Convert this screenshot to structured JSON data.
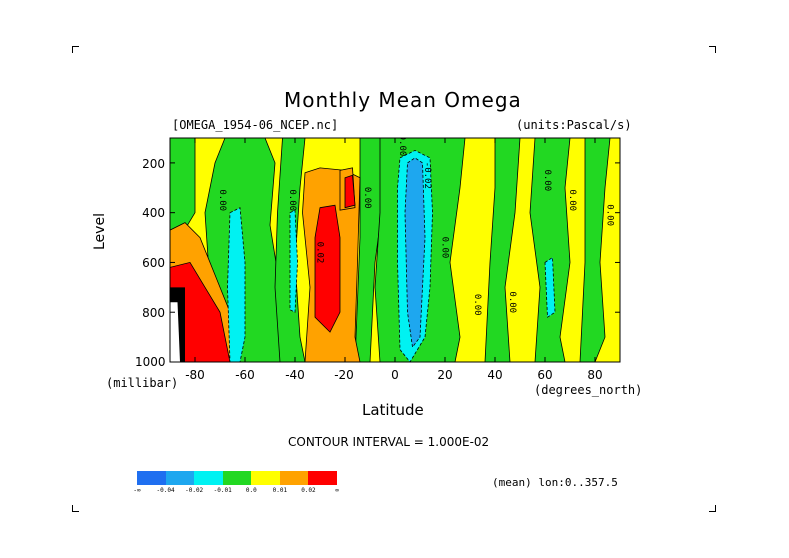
{
  "chart_data": {
    "type": "heatmap",
    "title": "Monthly Mean Omega",
    "subtitle_left": "[OMEGA_1954-06_NCEP.nc]",
    "subtitle_right": "(units:Pascal/s)",
    "xlabel": "Latitude",
    "xunits": "(degrees_north)",
    "ylabel": "Level",
    "yunits": "(millibar)",
    "xlim": [
      -90,
      90
    ],
    "ylim": [
      1000,
      100
    ],
    "x_ticks": [
      "-80",
      "-60",
      "-40",
      "-20",
      "0",
      "20",
      "40",
      "60",
      "80"
    ],
    "y_ticks": [
      "200",
      "400",
      "600",
      "800",
      "1000"
    ],
    "contour_interval": "CONTOUR INTERVAL = 1.000E-02",
    "colorbar": {
      "colors": [
        "#1f6ff0",
        "#1ea7ef",
        "#00f2f2",
        "#22d822",
        "#ffff00",
        "#ffa200",
        "#ff0000"
      ],
      "labels": [
        "-∞",
        "-0.04",
        "-0.02",
        "-0.01",
        "0.0",
        "0.01",
        "0.02",
        "∞"
      ]
    },
    "contour_labels": [
      {
        "text": "0.00",
        "lat": -70,
        "lev": 350
      },
      {
        "text": "0.00",
        "lat": -42,
        "lev": 350
      },
      {
        "text": "0.02",
        "lat": -31,
        "lev": 560
      },
      {
        "text": "0.00",
        "lat": -12,
        "lev": 340
      },
      {
        "text": "0.00",
        "lat": 2,
        "lev": 130
      },
      {
        "text": "-0.02",
        "lat": 12,
        "lev": 250
      },
      {
        "text": "0.00",
        "lat": 19,
        "lev": 540
      },
      {
        "text": "0.00",
        "lat": 32,
        "lev": 770
      },
      {
        "text": "0.00",
        "lat": 46,
        "lev": 760
      },
      {
        "text": "0.00",
        "lat": 60,
        "lev": 270
      },
      {
        "text": "0.00",
        "lat": 70,
        "lev": 350
      },
      {
        "text": "0.00",
        "lat": 85,
        "lev": 410
      }
    ],
    "footer": "(mean) lon:0..357.5"
  }
}
